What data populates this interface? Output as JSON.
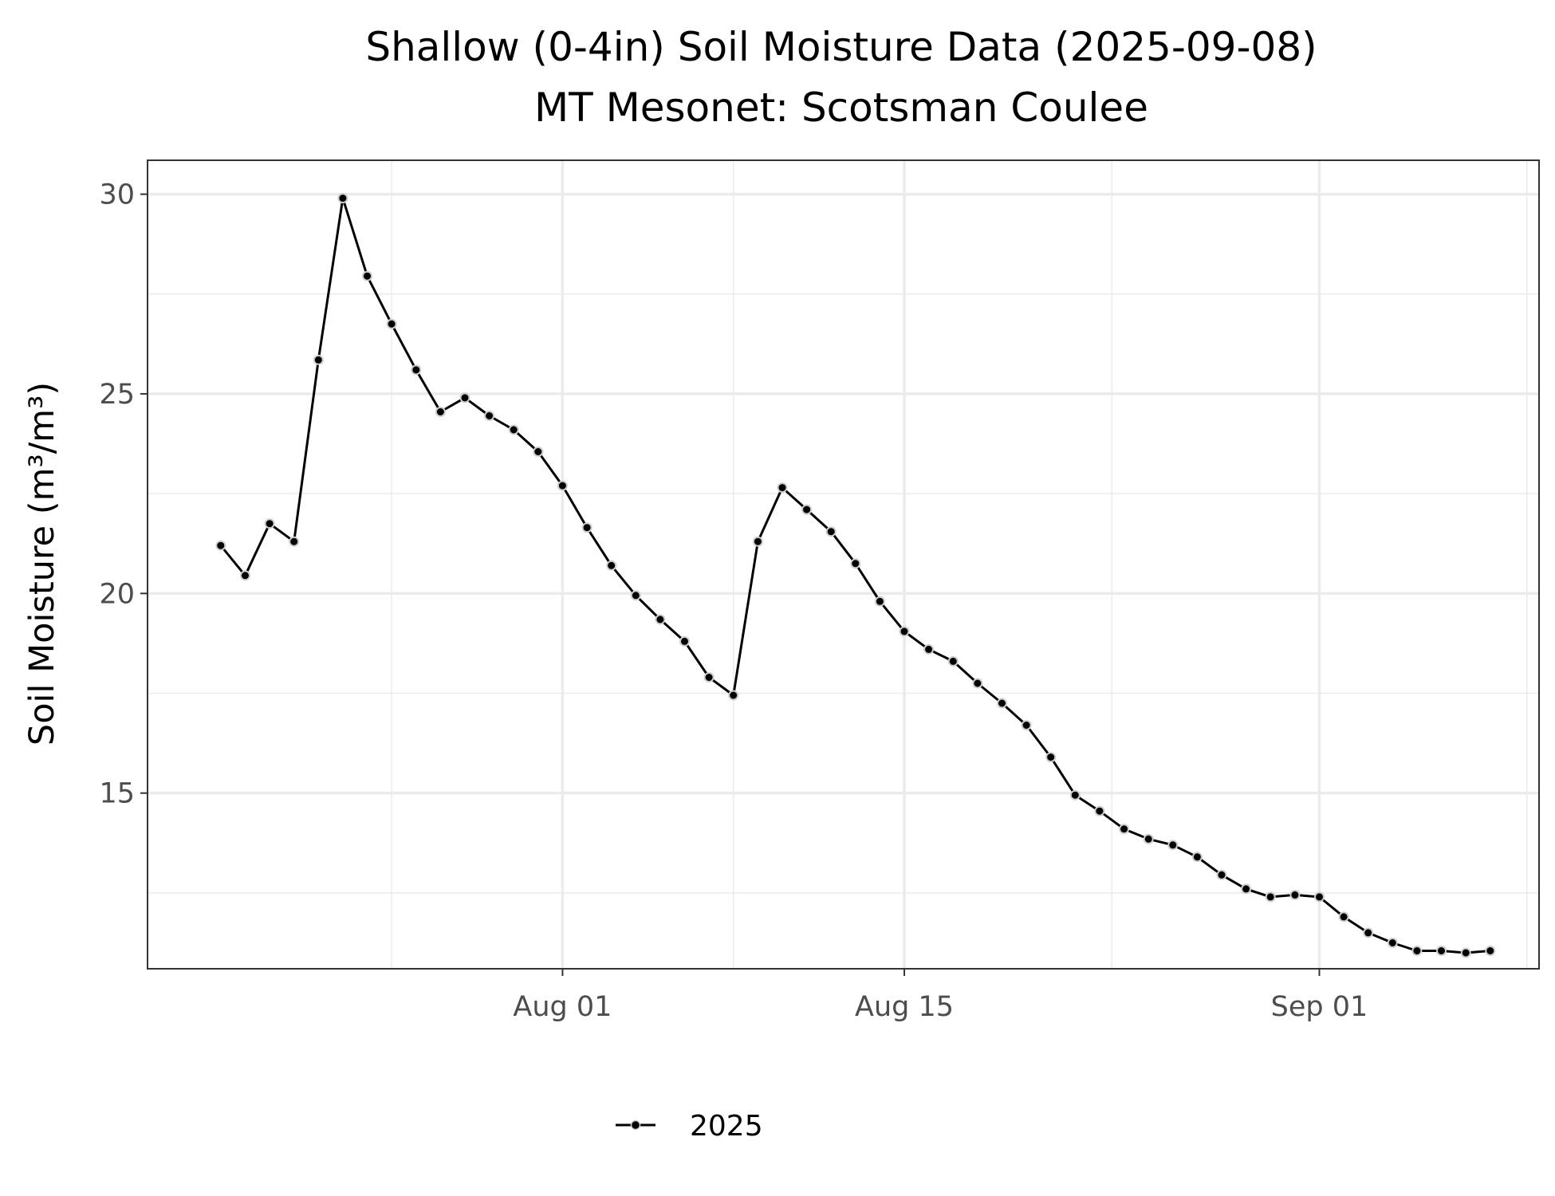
{
  "chart_data": {
    "type": "line",
    "title": "Shallow (0-4in) Soil Moisture Data (2025-09-08)",
    "subtitle": "MT Mesonet: Scotsman Coulee",
    "xlabel": "",
    "ylabel": "Soil Moisture (m³/m³)",
    "x_ticks": [
      {
        "date": "2025-08-01",
        "label": "Aug 01"
      },
      {
        "date": "2025-08-15",
        "label": "Aug 15"
      },
      {
        "date": "2025-09-01",
        "label": "Sep 01"
      }
    ],
    "y_ticks": [
      15,
      20,
      25,
      30
    ],
    "ylim": [
      10.6,
      30.85
    ],
    "xlim": [
      "2025-07-15",
      "2025-09-10"
    ],
    "grid": true,
    "legend_position": "bottom",
    "series": [
      {
        "name": "2025",
        "color": "#000000",
        "x": [
          "2025-07-18",
          "2025-07-19",
          "2025-07-20",
          "2025-07-21",
          "2025-07-22",
          "2025-07-23",
          "2025-07-24",
          "2025-07-25",
          "2025-07-26",
          "2025-07-27",
          "2025-07-28",
          "2025-07-29",
          "2025-07-30",
          "2025-07-31",
          "2025-08-01",
          "2025-08-02",
          "2025-08-03",
          "2025-08-04",
          "2025-08-05",
          "2025-08-06",
          "2025-08-07",
          "2025-08-08",
          "2025-08-09",
          "2025-08-10",
          "2025-08-11",
          "2025-08-12",
          "2025-08-13",
          "2025-08-14",
          "2025-08-15",
          "2025-08-16",
          "2025-08-17",
          "2025-08-18",
          "2025-08-19",
          "2025-08-20",
          "2025-08-21",
          "2025-08-22",
          "2025-08-23",
          "2025-08-24",
          "2025-08-25",
          "2025-08-26",
          "2025-08-27",
          "2025-08-28",
          "2025-08-29",
          "2025-08-30",
          "2025-08-31",
          "2025-09-01",
          "2025-09-02",
          "2025-09-03",
          "2025-09-04",
          "2025-09-05",
          "2025-09-06",
          "2025-09-07",
          "2025-09-08"
        ],
        "values": [
          21.2,
          20.45,
          21.75,
          21.3,
          25.85,
          29.9,
          27.95,
          26.75,
          25.6,
          24.55,
          24.9,
          24.45,
          24.1,
          23.55,
          22.7,
          21.65,
          20.7,
          19.95,
          19.35,
          18.8,
          17.9,
          17.45,
          21.3,
          22.65,
          22.1,
          21.55,
          20.75,
          19.8,
          19.05,
          18.6,
          18.3,
          17.75,
          17.25,
          16.7,
          15.9,
          14.95,
          14.55,
          14.1,
          13.85,
          13.7,
          13.4,
          12.95,
          12.6,
          12.4,
          12.45,
          12.4,
          11.9,
          11.5,
          11.25,
          11.05,
          11.05,
          11.0,
          11.05
        ]
      }
    ]
  }
}
